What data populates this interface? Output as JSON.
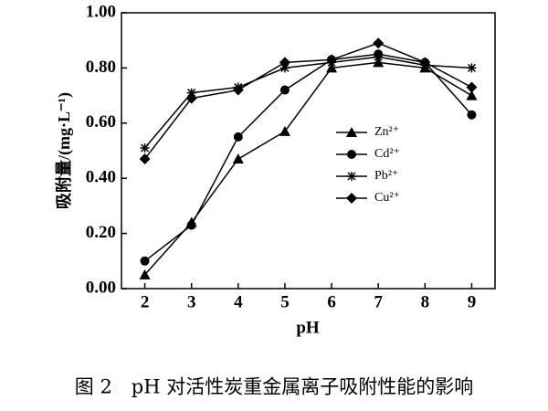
{
  "chart_data": {
    "type": "line",
    "caption": "图 2　pH 对活性炭重金属离子吸附性能的影响",
    "x_label": "pH",
    "y_label": "吸附量/(mg·L⁻¹)",
    "x": [
      2,
      3,
      4,
      5,
      6,
      7,
      8,
      9
    ],
    "xlim": [
      1.5,
      9.5
    ],
    "xticks": [
      2,
      3,
      4,
      5,
      6,
      7,
      8,
      9
    ],
    "ylim": [
      0,
      1
    ],
    "yticks": [
      {
        "value": 0,
        "label": "0.00"
      },
      {
        "value": 0.2,
        "label": "0.20"
      },
      {
        "value": 0.4,
        "label": "0.40"
      },
      {
        "value": 0.6,
        "label": "0.60"
      },
      {
        "value": 0.8,
        "label": "0.80"
      },
      {
        "value": 1,
        "label": "1.00"
      }
    ],
    "series": [
      {
        "name": "Zn²⁺",
        "color": "#000000",
        "marker": "triangle",
        "values": [
          0.05,
          0.24,
          0.47,
          0.57,
          0.8,
          0.82,
          0.8,
          0.7
        ]
      },
      {
        "name": "Cd²⁺",
        "color": "#000000",
        "marker": "circle",
        "values": [
          0.1,
          0.23,
          0.55,
          0.72,
          0.83,
          0.85,
          0.82,
          0.63
        ]
      },
      {
        "name": "Pb²⁺",
        "color": "#000000",
        "marker": "star",
        "values": [
          0.51,
          0.71,
          0.73,
          0.8,
          0.82,
          0.84,
          0.81,
          0.8
        ]
      },
      {
        "name": "Cu²⁺",
        "color": "#000000",
        "marker": "diamond",
        "values": [
          0.47,
          0.69,
          0.72,
          0.82,
          0.83,
          0.89,
          0.82,
          0.73
        ]
      }
    ]
  }
}
